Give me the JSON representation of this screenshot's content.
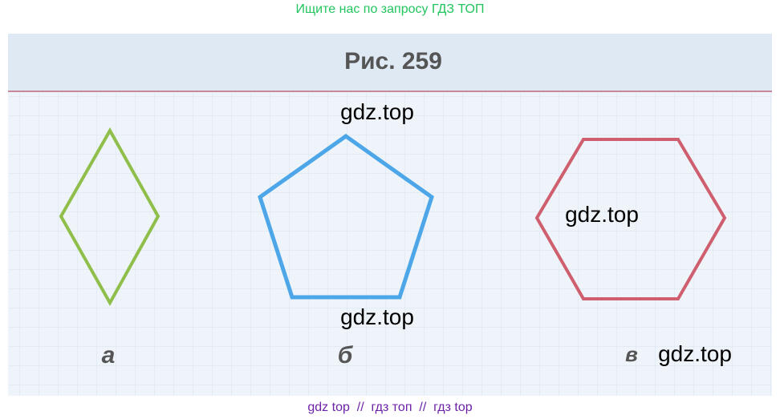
{
  "header": {
    "text": "Ищите нас по запросу ГДЗ ТОП"
  },
  "figure": {
    "title": "Рис. 259",
    "labels": [
      "а",
      "б",
      "в"
    ],
    "watermarks": [
      "gdz.top",
      "gdz.top",
      "gdz.top",
      "gdz.top"
    ]
  },
  "footer": {
    "text": "gdz top  //  гдз топ  //  гдз top"
  }
}
